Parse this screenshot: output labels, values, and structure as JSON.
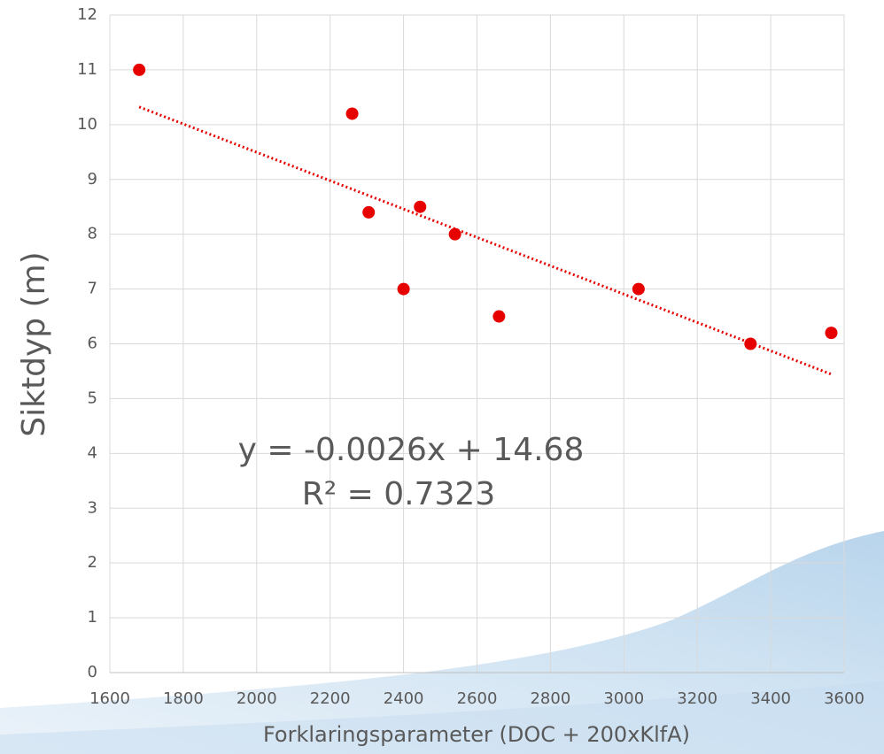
{
  "chart_data": {
    "type": "scatter",
    "x": [
      1680,
      2260,
      2305,
      2400,
      2445,
      2540,
      2660,
      3040,
      3345,
      3565
    ],
    "values": [
      11,
      10.2,
      8.4,
      7,
      8.5,
      8,
      6.5,
      7,
      6,
      6.2
    ],
    "color": "#e60000",
    "x_label": "Forklaringsparameter (DOC + 200xKlfA)",
    "y_label": "Siktdyp (m)",
    "xlim": [
      1600,
      3600
    ],
    "xticks": [
      1600,
      1800,
      2000,
      2200,
      2400,
      2600,
      2800,
      3000,
      3200,
      3400,
      3600
    ],
    "ylim": [
      0,
      12
    ],
    "yticks": [
      0,
      1,
      2,
      3,
      4,
      5,
      6,
      7,
      8,
      9,
      10,
      11,
      12
    ],
    "grid": true,
    "trendline": "linear",
    "annotations": [
      "y = -0.0026x + 14.68",
      "R² = 0.7323"
    ]
  }
}
